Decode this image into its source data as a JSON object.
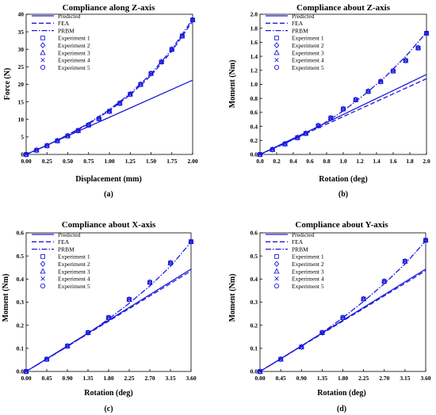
{
  "colors": {
    "series": "#1a1adb",
    "axis": "#000000",
    "background": "#ffffff"
  },
  "legend_entries": [
    "Predicted",
    "FEA",
    "PRBM",
    "Experiment 1",
    "Experiment 2",
    "Experiment 3",
    "Experiment 4",
    "Experiment 5"
  ],
  "chart_data": [
    {
      "type": "line",
      "title": "Compliance along Z-axis",
      "xlabel": "Displacement (mm)",
      "ylabel": "Force (N)",
      "caption": "(a)",
      "xlim": [
        0,
        2.0
      ],
      "ylim": [
        0,
        40
      ],
      "xticks": [
        "0.00",
        "0.25",
        "0.50",
        "0.75",
        "1.00",
        "1.25",
        "1.50",
        "1.75",
        "2.00"
      ],
      "yticks": [
        "0",
        "5",
        "10",
        "15",
        "20",
        "25",
        "30",
        "35",
        "40"
      ],
      "grid": false,
      "legend_position": "top-left",
      "series": [
        {
          "name": "Predicted",
          "style": "solid",
          "x": [
            0,
            2.0
          ],
          "y": [
            0,
            21.2
          ]
        },
        {
          "name": "FEA",
          "style": "dashed",
          "x": [
            0,
            0.25,
            0.5,
            0.75,
            1.0,
            1.25,
            1.5,
            1.75,
            2.0
          ],
          "y": [
            0,
            2.6,
            5.5,
            8.7,
            12.5,
            17.0,
            22.5,
            29.5,
            38.0
          ]
        },
        {
          "name": "PRBM",
          "style": "dashdot",
          "x": [
            0,
            0.25,
            0.5,
            0.75,
            1.0,
            1.25,
            1.5,
            1.75,
            2.0
          ],
          "y": [
            0,
            2.6,
            5.6,
            8.9,
            12.8,
            17.4,
            23.0,
            30.0,
            38.6
          ]
        }
      ],
      "experiment_x": [
        0,
        0.125,
        0.25,
        0.375,
        0.5,
        0.625,
        0.75,
        0.875,
        1.0,
        1.125,
        1.25,
        1.375,
        1.5,
        1.625,
        1.75,
        1.875,
        2.0
      ],
      "experiment_y": [
        0,
        1.2,
        2.5,
        3.9,
        5.3,
        6.8,
        8.4,
        10.2,
        12.3,
        14.6,
        17.2,
        20.0,
        23.1,
        26.4,
        30.0,
        33.8,
        38.4
      ]
    },
    {
      "type": "line",
      "title": "Compliance about Z-axis",
      "xlabel": "Rotation (deg)",
      "ylabel": "Moment (Nm)",
      "caption": "(b)",
      "xlim": [
        0,
        2.0
      ],
      "ylim": [
        0,
        2.0
      ],
      "xticks": [
        "0.0",
        "0.2",
        "0.4",
        "0.6",
        "0.8",
        "1.0",
        "1.2",
        "1.4",
        "1.6",
        "1.8",
        "2.0"
      ],
      "yticks": [
        "0.0",
        "0.2",
        "0.4",
        "0.6",
        "0.8",
        "1.0",
        "1.2",
        "1.4",
        "1.6",
        "1.8",
        "2.0"
      ],
      "grid": false,
      "legend_position": "top-left",
      "series": [
        {
          "name": "Predicted",
          "style": "solid",
          "x": [
            0,
            2.0
          ],
          "y": [
            0,
            1.14
          ]
        },
        {
          "name": "FEA",
          "style": "dashed",
          "x": [
            0,
            2.0
          ],
          "y": [
            0,
            1.08
          ]
        },
        {
          "name": "PRBM",
          "style": "dashdot",
          "x": [
            0,
            0.25,
            0.5,
            0.75,
            1.0,
            1.25,
            1.5,
            1.75,
            2.0
          ],
          "y": [
            0,
            0.13,
            0.27,
            0.43,
            0.62,
            0.85,
            1.1,
            1.4,
            1.74
          ]
        }
      ],
      "experiment_x": [
        0,
        0.15,
        0.3,
        0.45,
        0.55,
        0.7,
        0.85,
        1.0,
        1.15,
        1.3,
        1.45,
        1.6,
        1.75,
        1.9,
        2.0
      ],
      "experiment_y": [
        0,
        0.07,
        0.15,
        0.24,
        0.3,
        0.41,
        0.52,
        0.65,
        0.78,
        0.9,
        1.04,
        1.19,
        1.34,
        1.52,
        1.73
      ]
    },
    {
      "type": "line",
      "title": "Compliance about X-axis",
      "xlabel": "Rotation (deg)",
      "ylabel": "Moment (Nm)",
      "caption": "(c)",
      "xlim": [
        0,
        3.6
      ],
      "ylim": [
        0,
        0.6
      ],
      "xticks": [
        "0.00",
        "0.45",
        "0.90",
        "1.35",
        "1.80",
        "2.25",
        "2.70",
        "3.15",
        "3.60"
      ],
      "yticks": [
        "0.0",
        "0.1",
        "0.2",
        "0.3",
        "0.4",
        "0.5",
        "0.6"
      ],
      "grid": false,
      "legend_position": "top-left",
      "series": [
        {
          "name": "Predicted",
          "style": "solid",
          "x": [
            0,
            3.6
          ],
          "y": [
            0,
            0.443
          ]
        },
        {
          "name": "FEA",
          "style": "dashed",
          "x": [
            0,
            3.6
          ],
          "y": [
            0,
            0.435
          ]
        },
        {
          "name": "PRBM",
          "style": "dashdot",
          "x": [
            0,
            0.45,
            0.9,
            1.35,
            1.8,
            2.25,
            2.7,
            3.15,
            3.6
          ],
          "y": [
            0,
            0.053,
            0.108,
            0.165,
            0.227,
            0.295,
            0.37,
            0.455,
            0.56
          ]
        }
      ],
      "experiment_x": [
        0,
        0.45,
        0.9,
        1.35,
        1.8,
        2.25,
        2.7,
        3.15,
        3.6
      ],
      "experiment_y": [
        0,
        0.053,
        0.11,
        0.168,
        0.233,
        0.312,
        0.386,
        0.47,
        0.562
      ]
    },
    {
      "type": "line",
      "title": "Compliance about Y-axis",
      "xlabel": "Rotation (deg)",
      "ylabel": "Moment (Nm)",
      "caption": "(d)",
      "xlim": [
        0,
        3.6
      ],
      "ylim": [
        0,
        0.6
      ],
      "xticks": [
        "0.00",
        "0.45",
        "0.90",
        "1.35",
        "1.80",
        "2.25",
        "2.70",
        "3.15",
        "3.60"
      ],
      "yticks": [
        "0.0",
        "0.1",
        "0.2",
        "0.3",
        "0.4",
        "0.5",
        "0.6"
      ],
      "grid": false,
      "legend_position": "top-left",
      "series": [
        {
          "name": "Predicted",
          "style": "solid",
          "x": [
            0,
            3.6
          ],
          "y": [
            0,
            0.443
          ]
        },
        {
          "name": "FEA",
          "style": "dashed",
          "x": [
            0,
            3.6
          ],
          "y": [
            0,
            0.436
          ]
        },
        {
          "name": "PRBM",
          "style": "dashdot",
          "x": [
            0,
            0.45,
            0.9,
            1.35,
            1.8,
            2.25,
            2.7,
            3.15,
            3.6
          ],
          "y": [
            0,
            0.054,
            0.11,
            0.168,
            0.232,
            0.303,
            0.38,
            0.465,
            0.565
          ]
        }
      ],
      "experiment_x": [
        0,
        0.45,
        0.9,
        1.35,
        1.8,
        2.25,
        2.7,
        3.15,
        3.6
      ],
      "experiment_y": [
        0,
        0.053,
        0.106,
        0.168,
        0.233,
        0.314,
        0.39,
        0.477,
        0.568
      ]
    }
  ]
}
